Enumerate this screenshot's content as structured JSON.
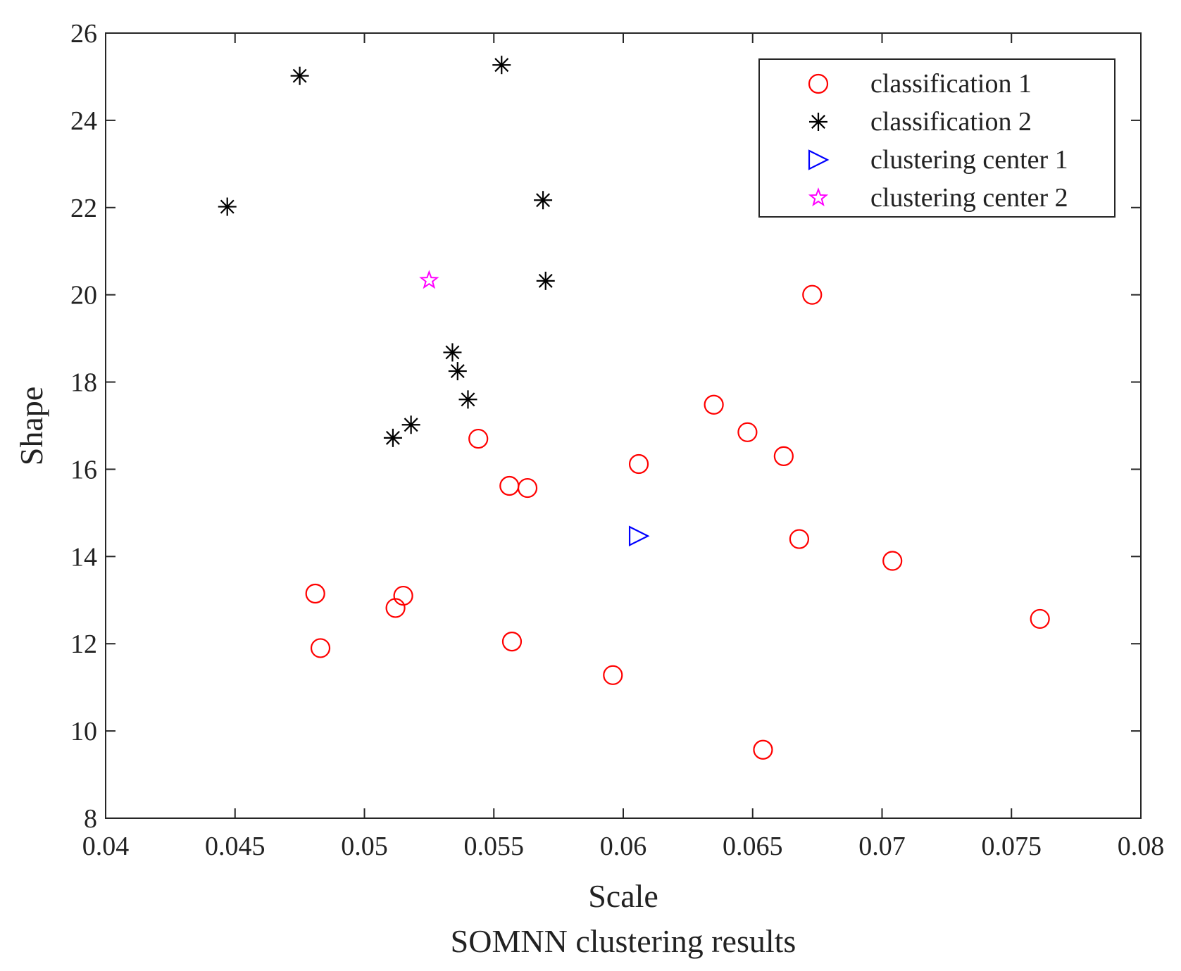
{
  "chart_data": {
    "type": "scatter",
    "title": "SOMNN clustering results",
    "xlabel": "Scale",
    "ylabel": "Shape",
    "xlim": [
      0.04,
      0.08
    ],
    "ylim": [
      8,
      26
    ],
    "xticks": [
      0.04,
      0.045,
      0.05,
      0.055,
      0.06,
      0.065,
      0.07,
      0.075,
      0.08
    ],
    "xtick_labels": [
      "0.04",
      "0.045",
      "0.05",
      "0.055",
      "0.06",
      "0.065",
      "0.07",
      "0.075",
      "0.08"
    ],
    "yticks": [
      8,
      10,
      12,
      14,
      16,
      18,
      20,
      22,
      24,
      26
    ],
    "ytick_labels": [
      "8",
      "10",
      "12",
      "14",
      "16",
      "18",
      "20",
      "22",
      "24",
      "26"
    ],
    "legend_position": "top-right",
    "series": [
      {
        "name": "classification 1",
        "marker": "circle",
        "color": "#ff0000",
        "points": [
          [
            0.0481,
            13.15
          ],
          [
            0.0483,
            11.9
          ],
          [
            0.0512,
            12.82
          ],
          [
            0.0515,
            13.1
          ],
          [
            0.0544,
            16.7
          ],
          [
            0.0556,
            15.62
          ],
          [
            0.0557,
            12.05
          ],
          [
            0.0563,
            15.57
          ],
          [
            0.0596,
            11.28
          ],
          [
            0.0606,
            16.12
          ],
          [
            0.0635,
            17.48
          ],
          [
            0.0648,
            16.85
          ],
          [
            0.0654,
            9.57
          ],
          [
            0.0662,
            16.3
          ],
          [
            0.0668,
            14.4
          ],
          [
            0.0673,
            20.0
          ],
          [
            0.0704,
            13.9
          ],
          [
            0.0761,
            12.57
          ]
        ]
      },
      {
        "name": "classification 2",
        "marker": "asterisk",
        "color": "#000000",
        "points": [
          [
            0.0447,
            22.02
          ],
          [
            0.0475,
            25.02
          ],
          [
            0.0511,
            16.72
          ],
          [
            0.0518,
            17.02
          ],
          [
            0.0534,
            18.68
          ],
          [
            0.0536,
            18.25
          ],
          [
            0.054,
            17.6
          ],
          [
            0.0553,
            25.27
          ],
          [
            0.0569,
            22.17
          ],
          [
            0.057,
            20.32
          ]
        ]
      },
      {
        "name": "clustering center 1",
        "marker": "triangle-right",
        "color": "#0000ff",
        "points": [
          [
            0.0606,
            14.47
          ]
        ]
      },
      {
        "name": "clustering center 2",
        "marker": "star",
        "color": "#ff00ff",
        "points": [
          [
            0.0525,
            20.33
          ]
        ]
      }
    ]
  }
}
